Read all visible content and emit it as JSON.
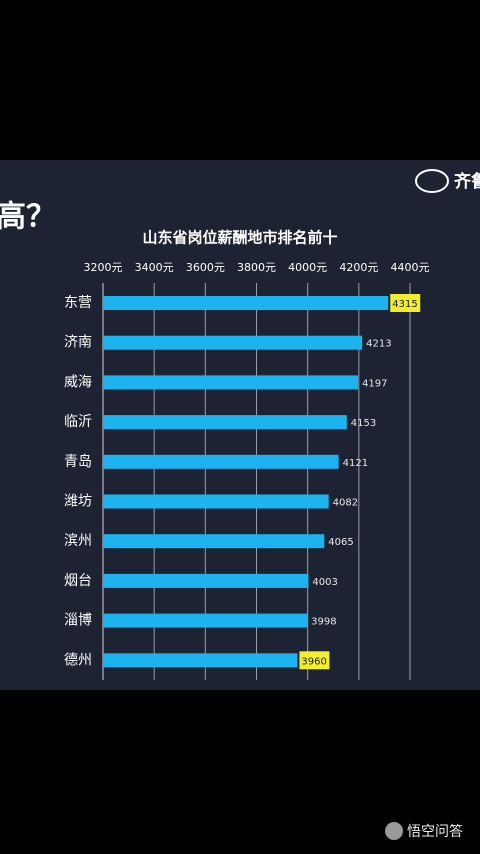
{
  "header": {
    "fragment": "高？",
    "logo": "齐鲁"
  },
  "chart_data": {
    "type": "bar",
    "orientation": "horizontal",
    "title": "山东省岗位薪酬地市排名前十",
    "categories": [
      "东营",
      "济南",
      "威海",
      "临沂",
      "青岛",
      "潍坊",
      "滨州",
      "烟台",
      "淄博",
      "德州"
    ],
    "values": [
      4315,
      4213,
      4197,
      4153,
      4121,
      4082,
      4065,
      4003,
      3998,
      3960
    ],
    "color": "#1cb3ef",
    "highlight_color": "#f2ee2e",
    "highlight": [
      0,
      9
    ],
    "xlim": [
      3200,
      4400
    ],
    "xticks": [
      {
        "value": 3200,
        "label": "3200元"
      },
      {
        "value": 3400,
        "label": "3400元"
      },
      {
        "value": 3600,
        "label": "3600元"
      },
      {
        "value": 3800,
        "label": "3800元"
      },
      {
        "value": 4000,
        "label": "4000元"
      },
      {
        "value": 4200,
        "label": "4200元"
      },
      {
        "value": 4400,
        "label": "4400元"
      }
    ],
    "grid": true
  },
  "footer": {
    "watermark": "悟空问答"
  }
}
